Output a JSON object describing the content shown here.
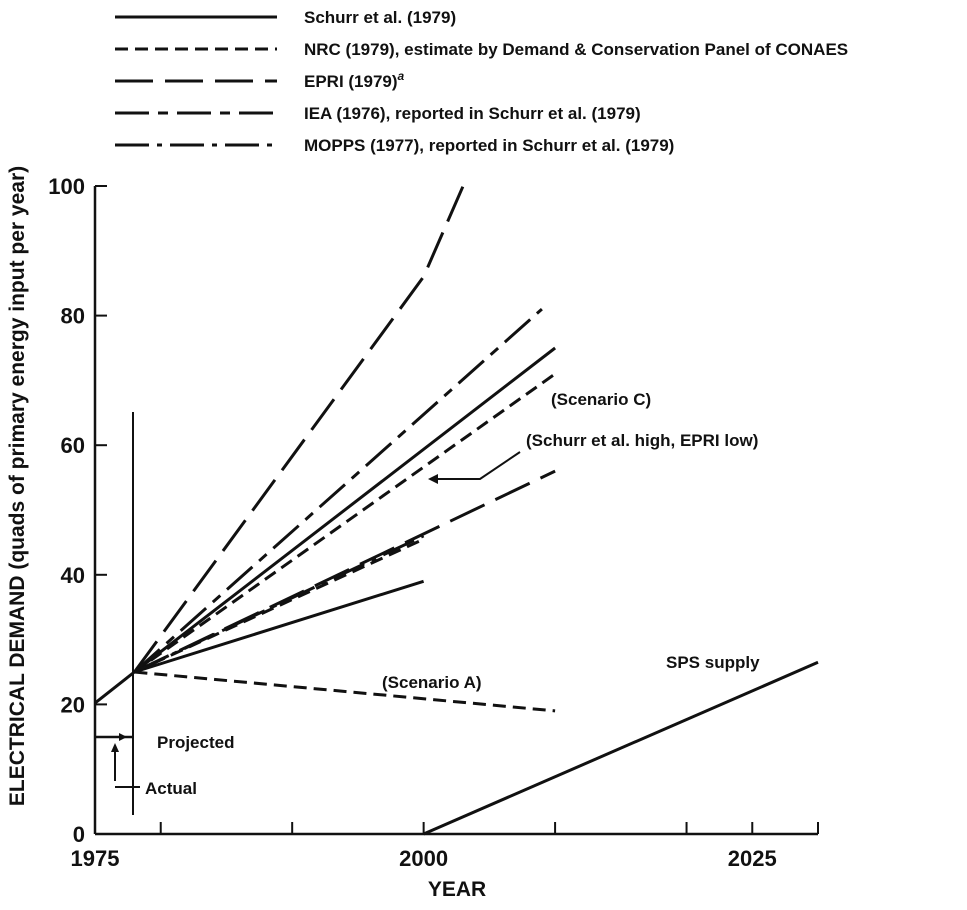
{
  "chart_data": {
    "type": "line",
    "xlabel": "YEAR",
    "ylabel": "ELECTRICAL DEMAND (quads of primary energy input per year)",
    "xlim": [
      1975,
      2030
    ],
    "ylim": [
      0,
      100
    ],
    "x_ticks": [
      1975,
      2000,
      2025
    ],
    "x_tick_labels": [
      "1975",
      "2000",
      "2025"
    ],
    "y_ticks": [
      0,
      20,
      40,
      60,
      80,
      100
    ],
    "y_tick_labels": [
      "0",
      "20",
      "40",
      "60",
      "80",
      "100"
    ],
    "grid": false,
    "legend_position": "top",
    "legend": [
      {
        "label": "Schurr et al. (1979)",
        "style": "solid"
      },
      {
        "label": "NRC (1979), estimate by Demand & Conservation Panel of CONAES",
        "style": "dashed"
      },
      {
        "label": "EPRI (1979)",
        "superscript": "a",
        "style": "longdash"
      },
      {
        "label": "IEA (1976), reported in Schurr et al. (1979)",
        "style": "longdashdash"
      },
      {
        "label": "MOPPS (1977), reported in Schurr et al. (1979)",
        "style": "longdashdot"
      }
    ],
    "series": [
      {
        "style": "solid",
        "x": [
          1975,
          1978
        ],
        "y": [
          20.2,
          25
        ]
      },
      {
        "style": "solid",
        "x": [
          1978,
          2000
        ],
        "y": [
          25,
          39
        ]
      },
      {
        "style": "solid",
        "x": [
          1978,
          2010
        ],
        "y": [
          25,
          75
        ]
      },
      {
        "style": "solid",
        "x": [
          2000,
          2030
        ],
        "y": [
          0,
          26.5
        ]
      },
      {
        "style": "dashed",
        "x": [
          1978,
          2010
        ],
        "y": [
          25,
          19
        ]
      },
      {
        "style": "dashed",
        "x": [
          1978,
          2010
        ],
        "y": [
          25,
          71
        ]
      },
      {
        "style": "dashed",
        "x": [
          1978,
          2000
        ],
        "y": [
          25,
          45.5
        ]
      },
      {
        "style": "longdash",
        "x": [
          1978,
          2000,
          2003
        ],
        "y": [
          25,
          86,
          100
        ]
      },
      {
        "style": "longdash",
        "x": [
          1978,
          2010
        ],
        "y": [
          25,
          56
        ]
      },
      {
        "style": "longdashdash",
        "x": [
          1978,
          2009
        ],
        "y": [
          25,
          81
        ]
      },
      {
        "style": "longdashdot",
        "x": [
          1978,
          2000
        ],
        "y": [
          25,
          46
        ]
      }
    ],
    "annotations": {
      "scenario_c": "(Scenario C)",
      "schurr_high": "(Schurr et al. high, EPRI low)",
      "scenario_a": "(Scenario A)",
      "sps_supply": "SPS supply",
      "projected": "Projected",
      "actual": "Actual"
    }
  }
}
